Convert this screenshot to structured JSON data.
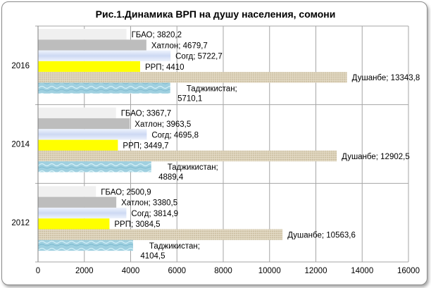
{
  "chart_data": {
    "type": "bar",
    "orientation": "horizontal",
    "title": "Рис.1.Динамика ВРП на душу населения, сомони",
    "categories": [
      "2016",
      "2014",
      "2012"
    ],
    "series": [
      {
        "name": "ГБАО",
        "values": [
          3820.2,
          3367.7,
          2500.9
        ],
        "labels": [
          "ГБАО; 3820,2",
          "ГБАО; 3367,7",
          "ГБАО; 2500,9"
        ],
        "color": "#f0f0f0"
      },
      {
        "name": "Хатлон",
        "values": [
          4679.7,
          3963.5,
          3380.5
        ],
        "labels": [
          "Хатлон; 4679,7",
          "Хатлон; 3963,5",
          "Хатлон; 3380,5"
        ],
        "color": "#bdbdbd"
      },
      {
        "name": "Согд",
        "values": [
          5722.7,
          4695.8,
          3814.9
        ],
        "labels": [
          "Согд; 5722,7",
          "Согд; 4695,8",
          "Согд; 3814,9"
        ],
        "color": "#dde6f8"
      },
      {
        "name": "РРП",
        "values": [
          4410,
          3449.7,
          3084.5
        ],
        "labels": [
          "РРП; 4410",
          "РРП; 3449,7",
          "РРП; 3084,5"
        ],
        "color": "#ffff00"
      },
      {
        "name": "Душанбе",
        "values": [
          13343.8,
          12902.5,
          10563.6
        ],
        "labels": [
          "Душанбе; 13343,8",
          "Душанбе; 12902,5",
          "Душанбе; 10563,6"
        ],
        "color": "#d8cdb5"
      },
      {
        "name": "Таджикистан",
        "values": [
          5710.1,
          4889.4,
          4104.5
        ],
        "labels": [
          "Таджикистан; 5710,1",
          "Таджикистан; 4889,4",
          "Таджикистан; 4104,5"
        ],
        "color": "#a6d2e0"
      }
    ],
    "xlim": [
      0,
      16000
    ],
    "xticks": [
      "0",
      "2000",
      "4000",
      "6000",
      "8000",
      "10000",
      "12000",
      "14000",
      "16000"
    ],
    "grid": true,
    "legend": "none"
  }
}
